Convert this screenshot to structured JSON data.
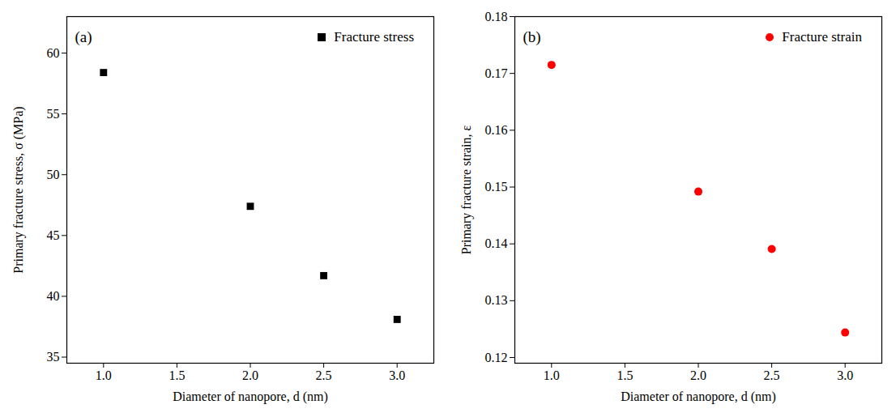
{
  "chart_data": [
    {
      "type": "scatter",
      "x_label": "Diameter of nanopore, d (nm)",
      "y_label": "Primary fracture stress, σ (MPa)",
      "annotations": [
        "(a)"
      ],
      "x": [
        1.0,
        2.0,
        2.5,
        3.0
      ],
      "series": [
        {
          "name": "Fracture stress",
          "color": "#000000",
          "marker": "square",
          "values": [
            58.4,
            47.4,
            41.7,
            38.1
          ]
        }
      ],
      "xlim": [
        0.75,
        3.25
      ],
      "xticks": [
        {
          "value": 1.0,
          "label": "1.0"
        },
        {
          "value": 1.5,
          "label": "1.5"
        },
        {
          "value": 2.0,
          "label": "2.0"
        },
        {
          "value": 2.5,
          "label": "2.5"
        },
        {
          "value": 3.0,
          "label": "3.0"
        }
      ],
      "ylim": [
        34.5,
        63
      ],
      "yticks": [
        35,
        40,
        45,
        50,
        55,
        60
      ],
      "legend": "top-right"
    },
    {
      "type": "scatter",
      "x_label": "Diameter of nanopore, d (nm)",
      "y_label": "Primary fracture strain, ε",
      "annotations": [
        "(b)"
      ],
      "x": [
        1.0,
        2.0,
        2.5,
        3.0
      ],
      "series": [
        {
          "name": "Fracture strain",
          "color": "#ff0000",
          "marker": "circle",
          "values": [
            0.1715,
            0.1492,
            0.1391,
            0.1244
          ]
        }
      ],
      "xlim": [
        0.75,
        3.25
      ],
      "xticks": [
        {
          "value": 1.0,
          "label": "1.0"
        },
        {
          "value": 1.5,
          "label": "1.5"
        },
        {
          "value": 2.0,
          "label": "2.0"
        },
        {
          "value": 2.5,
          "label": "2.5"
        },
        {
          "value": 3.0,
          "label": "3.0"
        }
      ],
      "ylim": [
        0.119,
        0.18
      ],
      "yticks": [
        0.12,
        0.13,
        0.14,
        0.15,
        0.16,
        0.17,
        0.18
      ],
      "legend": "top-right"
    }
  ]
}
